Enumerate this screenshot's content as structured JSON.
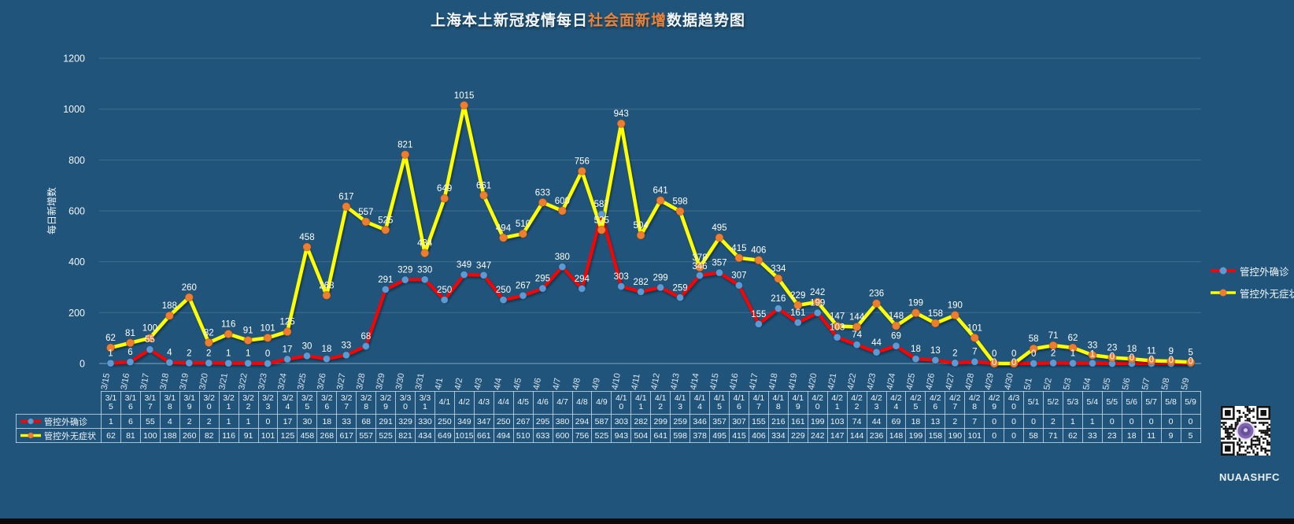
{
  "title": {
    "prefix": "上海本土新冠疫情每日",
    "highlight": "社会面新增",
    "suffix": "数据趋势图"
  },
  "chart_data": {
    "type": "line",
    "title": "上海本土新冠疫情每日社会面新增数据趋势图",
    "xlabel": "",
    "ylabel": "每日新增数",
    "ylim": [
      0,
      1200
    ],
    "yticks": [
      0,
      200,
      400,
      600,
      800,
      1000,
      1200
    ],
    "grid": true,
    "legend_position": "right",
    "data_labels": true,
    "categories": [
      "3/15",
      "3/16",
      "3/17",
      "3/18",
      "3/19",
      "3/20",
      "3/21",
      "3/22",
      "3/23",
      "3/24",
      "3/25",
      "3/26",
      "3/27",
      "3/28",
      "3/29",
      "3/30",
      "3/31",
      "4/1",
      "4/2",
      "4/3",
      "4/4",
      "4/5",
      "4/6",
      "4/7",
      "4/8",
      "4/9",
      "4/10",
      "4/11",
      "4/12",
      "4/13",
      "4/14",
      "4/15",
      "4/16",
      "4/17",
      "4/18",
      "4/19",
      "4/20",
      "4/21",
      "4/22",
      "4/23",
      "4/24",
      "4/25",
      "4/26",
      "4/27",
      "4/28",
      "4/29",
      "4/30",
      "5/1",
      "5/2",
      "5/3",
      "5/4",
      "5/5",
      "5/6",
      "5/7",
      "5/8",
      "5/9"
    ],
    "series": [
      {
        "name": "管控外确诊",
        "line_color": "#FF0000",
        "marker_color": "#5B9BD5",
        "values": [
          1,
          6,
          55,
          4,
          2,
          2,
          1,
          1,
          0,
          17,
          30,
          18,
          33,
          68,
          291,
          329,
          330,
          250,
          349,
          347,
          250,
          267,
          295,
          380,
          294,
          587,
          303,
          282,
          299,
          259,
          346,
          357,
          307,
          155,
          216,
          161,
          199,
          103,
          74,
          44,
          69,
          18,
          13,
          2,
          7,
          0,
          0,
          0,
          2,
          1,
          1,
          0,
          0,
          0,
          0,
          0
        ]
      },
      {
        "name": "管控外无症状",
        "line_color": "#FFFF00",
        "marker_color": "#ED7D31",
        "values": [
          62,
          81,
          100,
          188,
          260,
          82,
          116,
          91,
          101,
          125,
          458,
          268,
          617,
          557,
          525,
          821,
          434,
          649,
          1015,
          661,
          494,
          510,
          633,
          600,
          756,
          525,
          943,
          504,
          641,
          598,
          378,
          495,
          415,
          406,
          334,
          229,
          242,
          147,
          144,
          236,
          148,
          199,
          158,
          190,
          101,
          0,
          0,
          58,
          71,
          62,
          33,
          23,
          18,
          11,
          9,
          5
        ]
      }
    ]
  },
  "qr": {
    "caption": "NUAASHFC"
  },
  "colors": {
    "background": "#20547A",
    "title_highlight": "#E8833C",
    "text": "#F2F7FB",
    "grid": "#4A7699",
    "axis_line": "#A9C2D6",
    "tick_label": "#D9E4ED",
    "table_border": "#CDDFEF",
    "qr_logo": "#8166AE",
    "bottom_bar": "#0A0A0A"
  }
}
